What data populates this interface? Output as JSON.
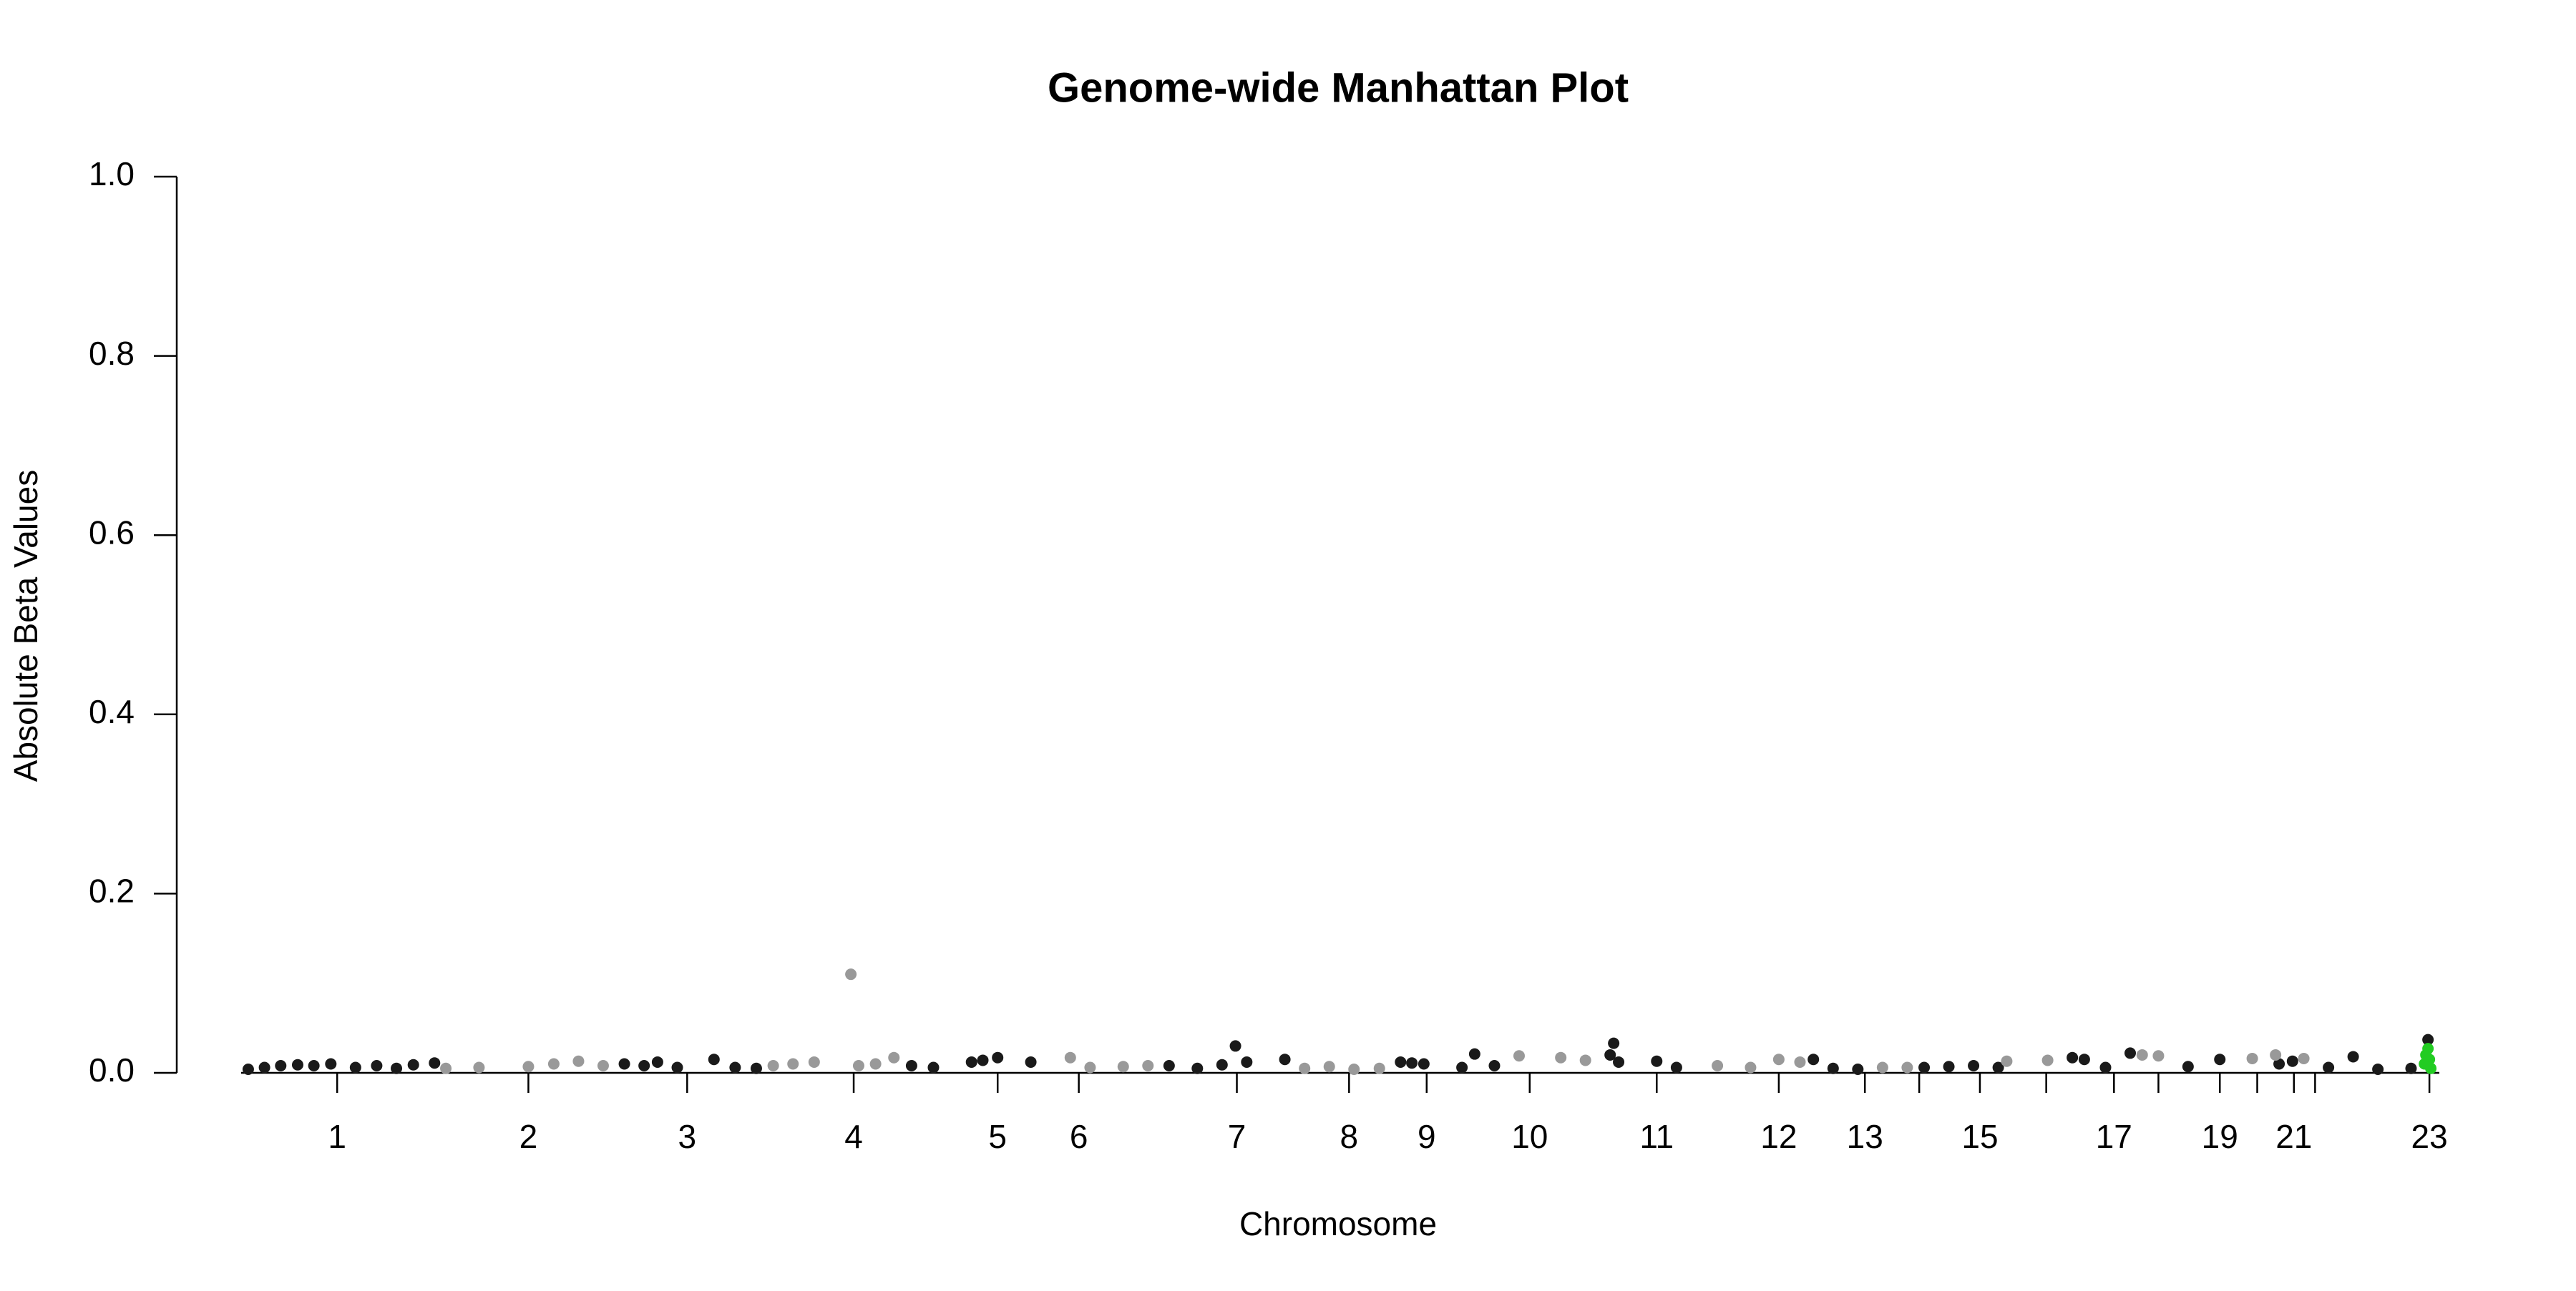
{
  "chart_data": {
    "type": "scatter",
    "title": "Genome-wide Manhattan Plot",
    "x_label": "Chromosome",
    "y_label": "Absolute Beta Values",
    "xlim": [
      0,
      3105
    ],
    "ylim": [
      0,
      1.0
    ],
    "yticks": [
      {
        "value": 0,
        "label": "0.0"
      },
      0.2,
      0.4,
      0.6,
      0.8,
      {
        "value": 1,
        "label": "1.0"
      }
    ],
    "xticks": [
      {
        "value": 131,
        "label": "1"
      },
      {
        "value": 402,
        "label": "2"
      },
      {
        "value": 627,
        "label": "3"
      },
      {
        "value": 863,
        "label": "4"
      },
      {
        "value": 1067,
        "label": "5"
      },
      {
        "value": 1182,
        "label": "6"
      },
      {
        "value": 1406,
        "label": "7"
      },
      {
        "value": 1565,
        "label": "8"
      },
      {
        "value": 1675,
        "label": "9"
      },
      {
        "value": 1821,
        "label": "10"
      },
      {
        "value": 2001,
        "label": "11"
      },
      {
        "value": 2174,
        "label": "12"
      },
      {
        "value": 2296,
        "label": "13"
      },
      {
        "value": 2373,
        "label": null
      },
      {
        "value": 2459,
        "label": "15"
      },
      {
        "value": 2553,
        "label": null
      },
      {
        "value": 2649,
        "label": "17"
      },
      {
        "value": 2712,
        "label": null
      },
      {
        "value": 2799,
        "label": "19"
      },
      {
        "value": 2852,
        "label": null
      },
      {
        "value": 2904,
        "label": "21"
      },
      {
        "value": 2934,
        "label": null
      },
      {
        "value": 3096,
        "label": "23"
      }
    ],
    "series": [
      {
        "color": "#1a1a1a",
        "x": [
          5,
          28,
          51,
          75,
          98,
          122,
          157,
          187,
          215,
          239,
          269,
          538,
          566,
          585,
          613,
          665,
          695,
          725,
          945,
          976,
          1030,
          1046,
          1067,
          1114,
          1310,
          1350,
          1385,
          1404,
          1420,
          1474,
          1638,
          1654,
          1671,
          1725,
          1743,
          1771,
          1935,
          1940,
          1947,
          2001,
          2029,
          2223,
          2251,
          2286,
          2380,
          2415,
          2450,
          2485,
          2590,
          2607,
          2637,
          2672,
          2754,
          2799,
          2883,
          2902,
          2953,
          2988,
          3023,
          3070,
          3094
        ],
        "values": [
          0.004,
          0.006,
          0.008,
          0.009,
          0.008,
          0.01,
          0.006,
          0.008,
          0.005,
          0.009,
          0.011,
          0.01,
          0.008,
          0.012,
          0.006,
          0.015,
          0.006,
          0.005,
          0.008,
          0.006,
          0.012,
          0.014,
          0.017,
          0.012,
          0.008,
          0.005,
          0.009,
          0.03,
          0.012,
          0.015,
          0.012,
          0.011,
          0.01,
          0.006,
          0.021,
          0.008,
          0.02,
          0.033,
          0.012,
          0.013,
          0.006,
          0.015,
          0.005,
          0.004,
          0.006,
          0.007,
          0.008,
          0.006,
          0.017,
          0.015,
          0.006,
          0.022,
          0.007,
          0.015,
          0.01,
          0.013,
          0.006,
          0.018,
          0.004,
          0.005,
          0.037
        ]
      },
      {
        "color": "#999999",
        "x": [
          285,
          332,
          402,
          438,
          473,
          508,
          749,
          777,
          807,
          859,
          870,
          894,
          920,
          1170,
          1198,
          1245,
          1280,
          1502,
          1537,
          1572,
          1608,
          1806,
          1865,
          1900,
          2087,
          2134,
          2174,
          2204,
          2321,
          2356,
          2497,
          2555,
          2689,
          2712,
          2845,
          2878,
          2918
        ],
        "values": [
          0.005,
          0.006,
          0.007,
          0.01,
          0.013,
          0.008,
          0.008,
          0.01,
          0.012,
          0.11,
          0.008,
          0.01,
          0.017,
          0.017,
          0.006,
          0.007,
          0.008,
          0.005,
          0.007,
          0.004,
          0.005,
          0.019,
          0.017,
          0.014,
          0.008,
          0.006,
          0.015,
          0.012,
          0.006,
          0.006,
          0.013,
          0.014,
          0.02,
          0.019,
          0.016,
          0.02,
          0.016
        ]
      },
      {
        "color": "#22cc22",
        "x": [
          3089,
          3091,
          3094,
          3096,
          3098
        ],
        "values": [
          0.01,
          0.02,
          0.027,
          0.015,
          0.005
        ]
      }
    ]
  }
}
